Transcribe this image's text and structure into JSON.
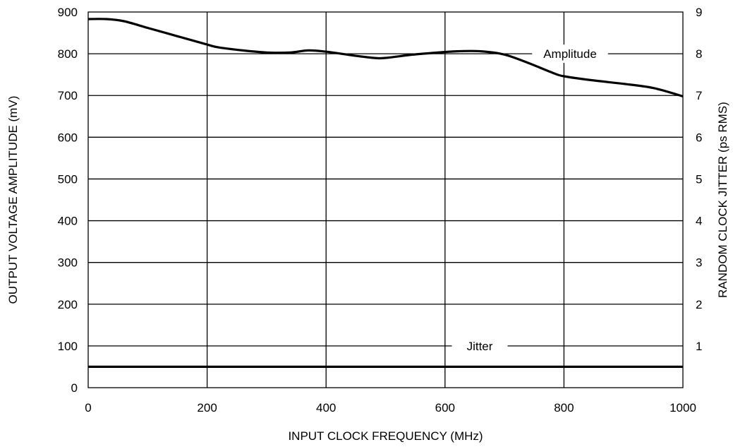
{
  "chart_data": {
    "type": "line",
    "xlabel": "INPUT CLOCK FREQUENCY (MHz)",
    "ylabel": "OUTPUT VOLTAGE AMPLITUDE (mV)",
    "y2label": "RANDOM CLOCK JITTER (ps RMS)",
    "xlim": [
      0,
      1000
    ],
    "ylim": [
      0,
      900
    ],
    "y2lim": [
      0,
      9
    ],
    "x_ticks": [
      "0",
      "200",
      "400",
      "600",
      "800",
      "1000"
    ],
    "y_ticks": [
      "0",
      "100",
      "200",
      "300",
      "400",
      "500",
      "600",
      "700",
      "800",
      "900"
    ],
    "y2_ticks": [
      "1",
      "2",
      "3",
      "4",
      "5",
      "6",
      "7",
      "8",
      "9"
    ],
    "grid": true,
    "series": [
      {
        "name": "Amplitude",
        "axis": "left",
        "x": [
          0,
          30,
          60,
          100,
          150,
          200,
          220,
          260,
          300,
          340,
          370,
          400,
          440,
          480,
          500,
          540,
          580,
          620,
          660,
          700,
          740,
          780,
          800,
          850,
          900,
          950,
          1000
        ],
        "y": [
          883,
          883,
          878,
          862,
          842,
          822,
          815,
          808,
          803,
          803,
          808,
          805,
          797,
          790,
          790,
          797,
          802,
          806,
          806,
          798,
          778,
          755,
          746,
          736,
          728,
          718,
          698
        ]
      },
      {
        "name": "Jitter",
        "axis": "right",
        "x": [
          0,
          1000
        ],
        "y": [
          0.5,
          0.5
        ]
      }
    ],
    "annotations": [
      "Amplitude",
      "Jitter"
    ]
  }
}
